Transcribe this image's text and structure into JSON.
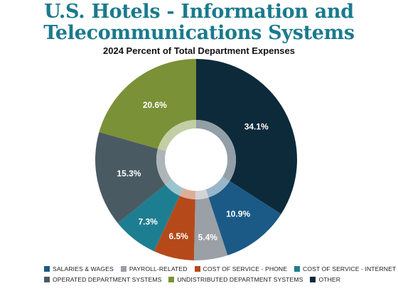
{
  "title_line1": "U.S. Hotels - Information and",
  "title_line2": "Telecommunications Systems",
  "chart_data": {
    "type": "pie",
    "subtitle": "2024 Percent of Total Department Expenses",
    "slices": [
      {
        "name": "OTHER",
        "value": 34.1,
        "label": "34.1%",
        "color": "#0d2a3a"
      },
      {
        "name": "SALARIES & WAGES",
        "value": 10.9,
        "label": "10.9%",
        "color": "#1b5a86"
      },
      {
        "name": "PAYROLL-RELATED",
        "value": 5.4,
        "label": "5.4%",
        "color": "#9aa0a6"
      },
      {
        "name": "COST OF SERVICE - PHONE",
        "value": 6.5,
        "label": "6.5%",
        "color": "#b5491a"
      },
      {
        "name": "COST OF SERVICE - INTERNET",
        "value": 7.3,
        "label": "7.3%",
        "color": "#1e7e91"
      },
      {
        "name": "OPERATED DEPARTMENT SYSTEMS",
        "value": 15.3,
        "label": "15.3%",
        "color": "#4a5a63"
      },
      {
        "name": "UNDISTRIBUTED DEPARTMENT SYSTEMS",
        "value": 20.6,
        "label": "20.6%",
        "color": "#7a9137"
      }
    ],
    "legend_rows": [
      [
        "SALARIES & WAGES",
        "PAYROLL-RELATED",
        "COST OF SERVICE - PHONE",
        "COST OF SERVICE - INTERNET"
      ],
      [
        "OPERATED DEPARTMENT SYSTEMS",
        "UNDISTRIBUTED DEPARTMENT SYSTEMS",
        "OTHER"
      ]
    ]
  }
}
